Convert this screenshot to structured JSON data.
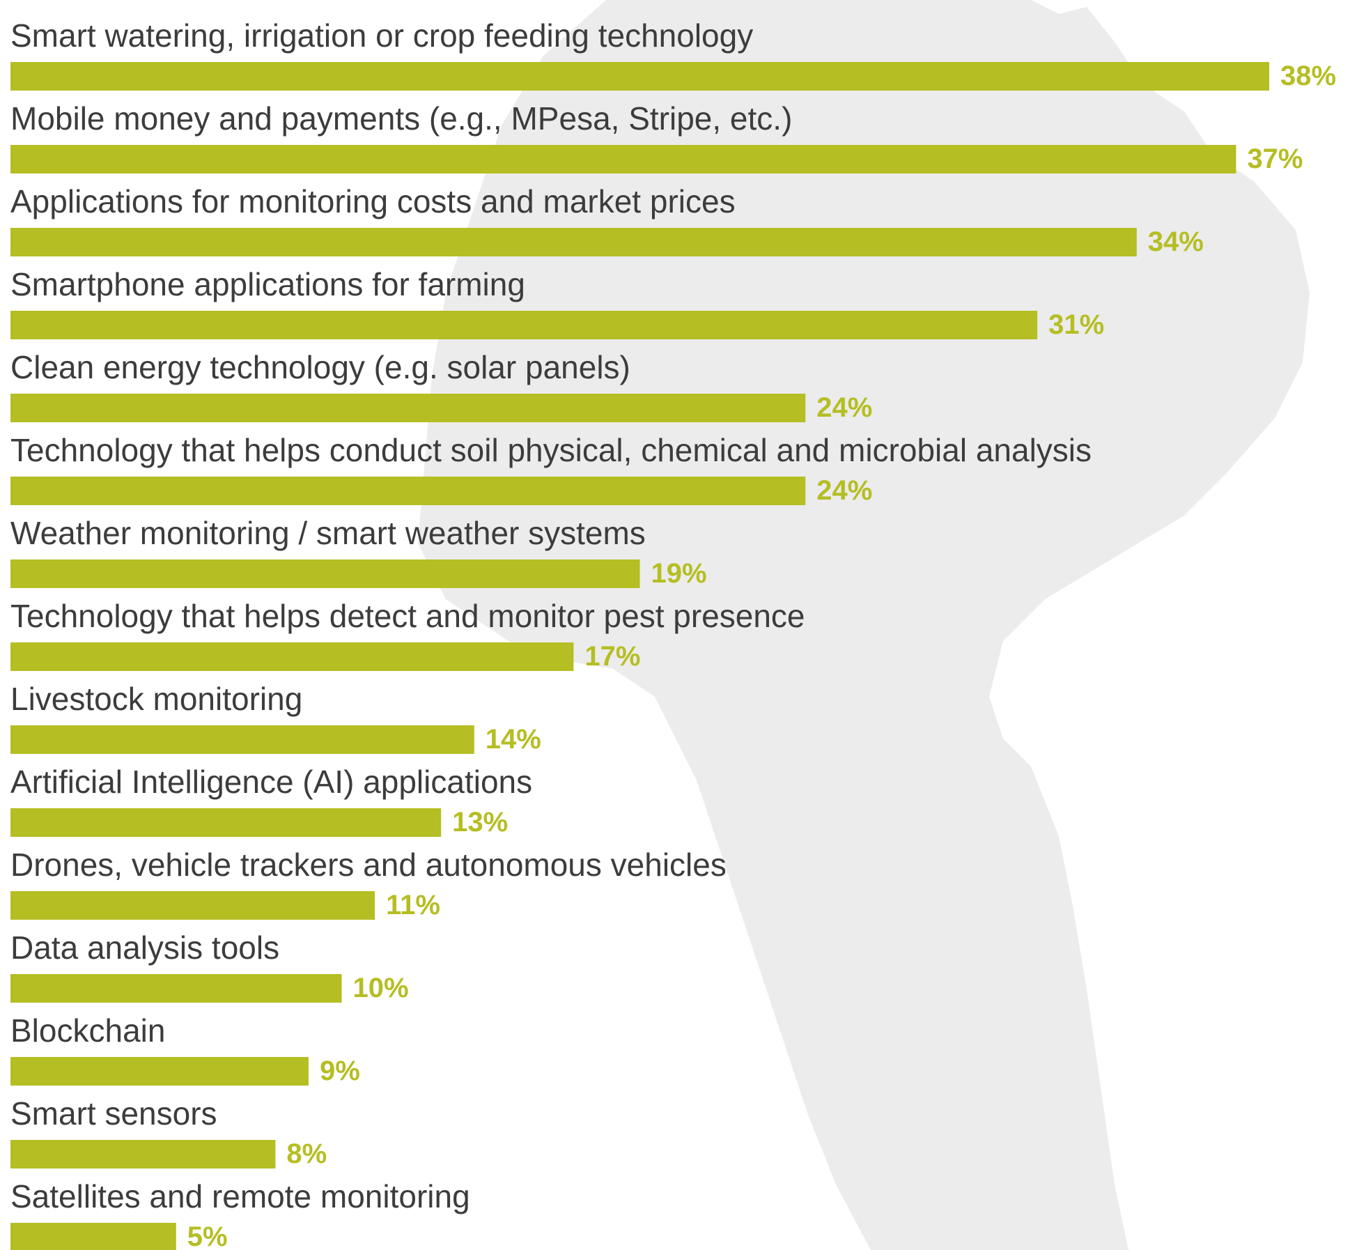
{
  "chart_data": {
    "type": "bar",
    "orientation": "horizontal",
    "categories": [
      "Smart watering, irrigation or crop feeding technology",
      "Mobile money and payments (e.g., MPesa, Stripe, etc.)",
      "Applications for monitoring costs and market prices",
      "Smartphone applications for farming",
      "Clean energy technology (e.g. solar panels)",
      "Technology that helps conduct soil physical, chemical and microbial analysis",
      "Weather monitoring / smart weather systems",
      "Technology that helps detect and monitor pest presence",
      "Livestock monitoring",
      "Artificial Intelligence (AI) applications",
      "Drones, vehicle trackers and autonomous vehicles",
      "Data analysis tools",
      "Blockchain",
      "Smart sensors",
      "Satellites and remote monitoring"
    ],
    "values": [
      38,
      37,
      34,
      31,
      24,
      24,
      19,
      17,
      14,
      13,
      11,
      10,
      9,
      8,
      5
    ],
    "value_labels": [
      "38%",
      "37%",
      "34%",
      "31%",
      "24%",
      "24%",
      "19%",
      "17%",
      "14%",
      "13%",
      "11%",
      "10%",
      "9%",
      "8%",
      "5%"
    ],
    "color": "#b5be22"
  }
}
